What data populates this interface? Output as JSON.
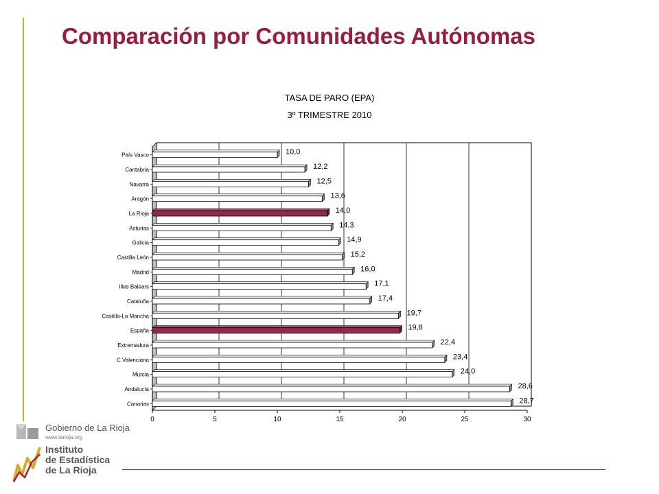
{
  "slide": {
    "title": "Comparación por Comunidades Autónomas"
  },
  "colors": {
    "title": "#9c1c3f",
    "bar_default": "#ffffff",
    "bar_highlight": "#8e2a4e",
    "side_rule": "#d9a928",
    "bottom_rule": "#b01c2e"
  },
  "chart_data": {
    "type": "bar",
    "orientation": "horizontal",
    "title": "TASA DE PARO (EPA)",
    "subtitle": "3º TRIMESTRE 2010",
    "categories": [
      "País Vasco",
      "Cantabria",
      "Navarra",
      "Aragón",
      "La Rioja",
      "Asturias",
      "Galicia",
      "Castilla León",
      "Madrid",
      "Illes Balears",
      "Cataluña",
      "Castilla-La Mancha",
      "España",
      "Extremadura",
      "C.Valenciana",
      "Murcia",
      "Andalucía",
      "Canarias"
    ],
    "values": [
      10.0,
      12.2,
      12.5,
      13.6,
      14.0,
      14.3,
      14.9,
      15.2,
      16.0,
      17.1,
      17.4,
      19.7,
      19.8,
      22.4,
      23.4,
      24.0,
      28.6,
      28.7
    ],
    "value_labels": [
      "10,0",
      "12,2",
      "12,5",
      "13,6",
      "14,0",
      "14,3",
      "14,9",
      "15,2",
      "16,0",
      "17,1",
      "17,4",
      "19,7",
      "19,8",
      "22,4",
      "23,4",
      "24,0",
      "28,6",
      "28,7"
    ],
    "highlighted": [
      "La Rioja",
      "España"
    ],
    "xlim": [
      0,
      30
    ],
    "xticks": [
      "0",
      "5",
      "10",
      "15",
      "20",
      "25",
      "30"
    ],
    "grid": true,
    "legend": "none"
  },
  "logos": {
    "gobierno_name": "Gobierno de La Rioja",
    "gobierno_url": "www.larioja.org",
    "instituto_name": "Instituto\nde Estadística\nde La Rioja"
  }
}
